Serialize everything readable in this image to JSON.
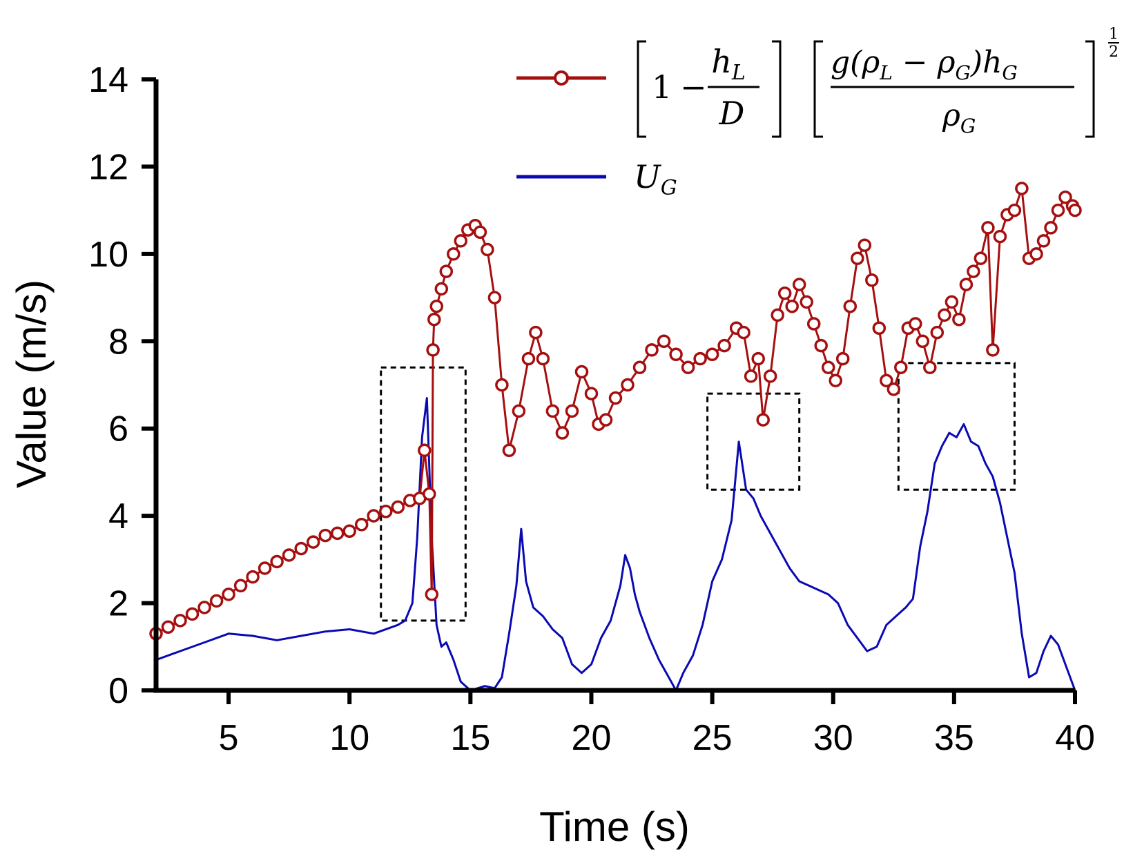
{
  "chart_data": {
    "type": "line",
    "title": "",
    "xlabel": "Time (s)",
    "ylabel": "Value (m/s)",
    "xlim": [
      2,
      40
    ],
    "ylim": [
      0,
      14
    ],
    "x_ticks": [
      5,
      10,
      15,
      20,
      25,
      30,
      35,
      40
    ],
    "x_tick_labels": [
      "5",
      "10",
      "15",
      "20",
      "25",
      "30",
      "35",
      "40"
    ],
    "y_ticks": [
      0,
      2,
      4,
      6,
      8,
      10,
      12,
      14
    ],
    "y_tick_labels": [
      "0",
      "2",
      "4",
      "6",
      "8",
      "10",
      "12",
      "14"
    ],
    "grid": false,
    "legend_position": "top-right",
    "highlight_boxes": [
      {
        "x0": 11.3,
        "x1": 14.8,
        "y0": 1.6,
        "y1": 7.4
      },
      {
        "x0": 24.8,
        "x1": 28.6,
        "y0": 4.6,
        "y1": 6.8
      },
      {
        "x0": 32.7,
        "x1": 37.5,
        "y0": 4.6,
        "y1": 7.5
      }
    ],
    "series": [
      {
        "name": "[1 − hL/D] [g(ρL − ρG)hG / ρG]^(1/2)",
        "color": "#a50f0f",
        "marker": "open-circle",
        "x": [
          2.0,
          2.5,
          3.0,
          3.5,
          4.0,
          4.5,
          5.0,
          5.5,
          6.0,
          6.5,
          7.0,
          7.5,
          8.0,
          8.5,
          9.0,
          9.5,
          10.0,
          10.5,
          11.0,
          11.5,
          12.0,
          12.5,
          12.9,
          13.1,
          13.3,
          13.4,
          13.45,
          13.5,
          13.6,
          13.8,
          14.0,
          14.3,
          14.6,
          14.9,
          15.2,
          15.4,
          15.7,
          16.0,
          16.3,
          16.6,
          17.0,
          17.4,
          17.7,
          18.0,
          18.4,
          18.8,
          19.2,
          19.6,
          20.0,
          20.3,
          20.6,
          21.0,
          21.5,
          22.0,
          22.5,
          23.0,
          23.5,
          24.0,
          24.5,
          25.0,
          25.5,
          26.0,
          26.3,
          26.6,
          26.9,
          27.1,
          27.4,
          27.7,
          28.0,
          28.3,
          28.6,
          28.9,
          29.2,
          29.5,
          29.8,
          30.1,
          30.4,
          30.7,
          31.0,
          31.3,
          31.6,
          31.9,
          32.2,
          32.5,
          32.8,
          33.1,
          33.4,
          33.7,
          34.0,
          34.3,
          34.6,
          34.9,
          35.2,
          35.5,
          35.8,
          36.1,
          36.4,
          36.6,
          36.9,
          37.2,
          37.5,
          37.8,
          38.1,
          38.4,
          38.7,
          39.0,
          39.3,
          39.6,
          39.9,
          40.0
        ],
        "y": [
          1.3,
          1.45,
          1.6,
          1.75,
          1.9,
          2.05,
          2.2,
          2.4,
          2.6,
          2.8,
          2.95,
          3.1,
          3.25,
          3.4,
          3.55,
          3.6,
          3.65,
          3.8,
          4.0,
          4.1,
          4.2,
          4.35,
          4.4,
          5.5,
          4.5,
          2.2,
          7.8,
          8.5,
          8.8,
          9.2,
          9.6,
          10.0,
          10.3,
          10.55,
          10.65,
          10.5,
          10.1,
          9.0,
          7.0,
          5.5,
          6.4,
          7.6,
          8.2,
          7.6,
          6.4,
          5.9,
          6.4,
          7.3,
          6.8,
          6.1,
          6.2,
          6.7,
          7.0,
          7.4,
          7.8,
          8.0,
          7.7,
          7.4,
          7.6,
          7.7,
          7.9,
          8.3,
          8.2,
          7.2,
          7.6,
          6.2,
          7.2,
          8.6,
          9.1,
          8.8,
          9.3,
          8.9,
          8.4,
          7.9,
          7.4,
          7.1,
          7.6,
          8.8,
          9.9,
          10.2,
          9.4,
          8.3,
          7.1,
          6.9,
          7.4,
          8.3,
          8.4,
          8.0,
          7.4,
          8.2,
          8.6,
          8.9,
          8.5,
          9.3,
          9.6,
          9.9,
          10.6,
          7.8,
          10.4,
          10.9,
          11.0,
          11.5,
          9.9,
          10.0,
          10.3,
          10.6,
          11.0,
          11.3,
          11.1,
          11.0
        ]
      },
      {
        "name": "UG",
        "color": "#0a0ab4",
        "marker": "none",
        "x": [
          2.0,
          3.0,
          4.0,
          5.0,
          6.0,
          7.0,
          8.0,
          9.0,
          10.0,
          11.0,
          12.0,
          12.3,
          12.6,
          12.8,
          13.0,
          13.2,
          13.4,
          13.6,
          13.8,
          14.0,
          14.3,
          14.6,
          15.0,
          15.3,
          15.6,
          16.0,
          16.3,
          16.6,
          16.9,
          17.1,
          17.3,
          17.6,
          18.0,
          18.4,
          18.8,
          19.2,
          19.6,
          20.0,
          20.4,
          20.8,
          21.2,
          21.4,
          21.6,
          21.8,
          22.0,
          22.4,
          22.8,
          23.2,
          23.5,
          23.8,
          24.2,
          24.6,
          25.0,
          25.4,
          25.8,
          26.1,
          26.4,
          26.7,
          27.0,
          27.4,
          27.8,
          28.2,
          28.6,
          29.0,
          29.4,
          29.8,
          30.2,
          30.6,
          31.0,
          31.4,
          31.8,
          32.2,
          32.6,
          33.0,
          33.3,
          33.6,
          33.9,
          34.2,
          34.5,
          34.8,
          35.1,
          35.4,
          35.7,
          36.0,
          36.3,
          36.6,
          36.9,
          37.2,
          37.5,
          37.8,
          38.1,
          38.4,
          38.7,
          39.0,
          39.3,
          39.6,
          40.0
        ],
        "y": [
          0.7,
          0.9,
          1.1,
          1.3,
          1.25,
          1.15,
          1.25,
          1.35,
          1.4,
          1.3,
          1.5,
          1.6,
          2.0,
          3.5,
          5.8,
          6.7,
          3.5,
          1.5,
          1.0,
          1.1,
          0.7,
          0.2,
          0.0,
          0.05,
          0.1,
          0.05,
          0.3,
          1.3,
          2.4,
          3.7,
          2.5,
          1.9,
          1.7,
          1.4,
          1.2,
          0.6,
          0.4,
          0.6,
          1.2,
          1.6,
          2.4,
          3.1,
          2.8,
          2.2,
          1.8,
          1.2,
          0.7,
          0.3,
          0.0,
          0.4,
          0.8,
          1.5,
          2.5,
          3.0,
          3.9,
          5.7,
          4.6,
          4.4,
          4.0,
          3.6,
          3.2,
          2.8,
          2.5,
          2.4,
          2.3,
          2.2,
          2.0,
          1.5,
          1.2,
          0.9,
          1.0,
          1.5,
          1.7,
          1.9,
          2.1,
          3.3,
          4.1,
          5.2,
          5.6,
          5.9,
          5.8,
          6.1,
          5.7,
          5.6,
          5.2,
          4.9,
          4.3,
          3.5,
          2.7,
          1.3,
          0.3,
          0.4,
          0.9,
          1.25,
          1.05,
          0.6,
          0.0
        ]
      }
    ]
  },
  "legend": {
    "series1_math": {
      "bracket1_one": "1",
      "minus": "−",
      "frac1_num_var": "h",
      "frac1_num_sub": "L",
      "frac1_den": "D",
      "frac2_num_g": "g(",
      "rho": "ρ",
      "sub_L": "L",
      "sub_G": "G",
      "frac2_num_minus": " − ",
      "frac2_num_close": ")",
      "frac2_num_h": "h",
      "exp_num": "1",
      "exp_den": "2"
    },
    "series2_var": "U",
    "series2_sub": "G"
  }
}
